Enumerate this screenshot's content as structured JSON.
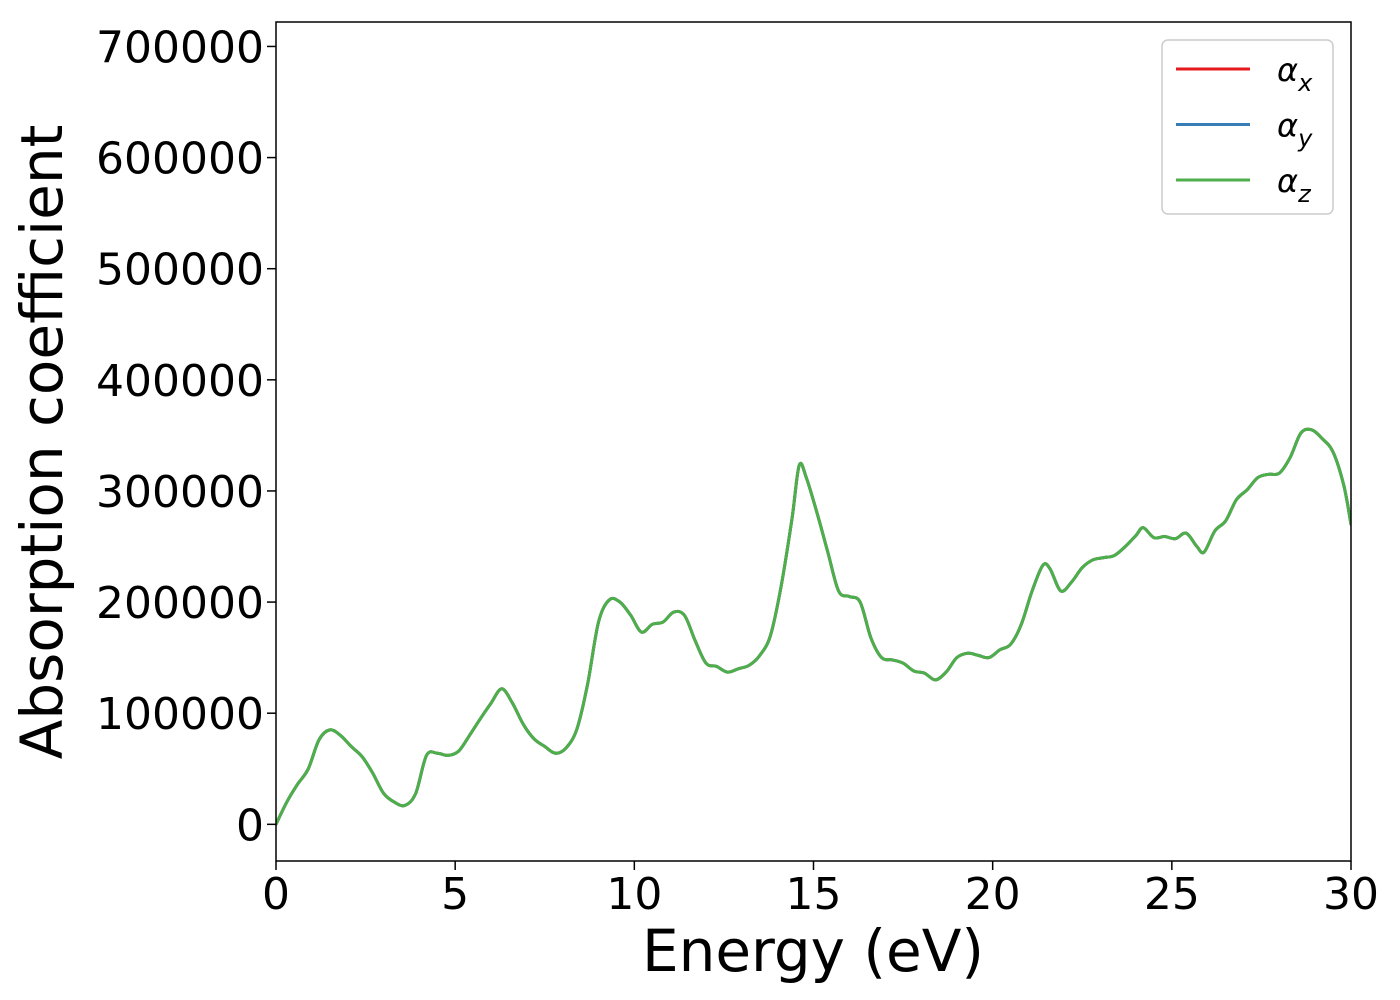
{
  "chart_data": {
    "type": "line",
    "xlabel": "Energy (eV)",
    "ylabel": "Absorption coefficient",
    "xlim": [
      0,
      30
    ],
    "ylim": [
      -33000,
      722000
    ],
    "xticks": [
      0,
      5,
      10,
      15,
      20,
      25,
      30
    ],
    "yticks": [
      0,
      100000,
      200000,
      300000,
      400000,
      500000,
      600000,
      700000
    ],
    "grid": false,
    "legend": "top-right",
    "legend_entries": [
      {
        "base": "α",
        "sub": "x",
        "color": "#e41a1c"
      },
      {
        "base": "α",
        "sub": "y",
        "color": "#377eb8"
      },
      {
        "base": "α",
        "sub": "z",
        "color": "#4daf4a"
      }
    ],
    "x": [
      0,
      0.3,
      0.6,
      0.9,
      1.2,
      1.5,
      1.8,
      2.1,
      2.4,
      2.7,
      3.0,
      3.3,
      3.6,
      3.9,
      4.2,
      4.5,
      4.8,
      5.1,
      5.4,
      5.7,
      6.0,
      6.3,
      6.6,
      6.9,
      7.2,
      7.5,
      7.8,
      8.1,
      8.4,
      8.7,
      9.0,
      9.3,
      9.6,
      9.9,
      10.2,
      10.5,
      10.8,
      11.1,
      11.4,
      11.7,
      12.0,
      12.3,
      12.6,
      12.9,
      13.2,
      13.5,
      13.8,
      14.1,
      14.4,
      14.6,
      14.8,
      15.1,
      15.4,
      15.7,
      16.0,
      16.3,
      16.6,
      16.9,
      17.2,
      17.5,
      17.8,
      18.1,
      18.4,
      18.7,
      19.0,
      19.3,
      19.6,
      19.9,
      20.2,
      20.5,
      20.8,
      21.1,
      21.4,
      21.6,
      21.9,
      22.2,
      22.5,
      22.8,
      23.1,
      23.4,
      23.7,
      24.0,
      24.2,
      24.5,
      24.8,
      25.1,
      25.4,
      25.7,
      25.9,
      26.2,
      26.5,
      26.8,
      27.1,
      27.4,
      27.7,
      28.0,
      28.3,
      28.6,
      28.9,
      29.2,
      29.5,
      29.8,
      30.0
    ],
    "series": [
      {
        "values": [
          0,
          20000,
          36000,
          50000,
          76000,
          85000,
          80000,
          70000,
          61000,
          46000,
          28000,
          20000,
          17000,
          28000,
          62000,
          64000,
          62000,
          66000,
          80000,
          95000,
          109000,
          122000,
          109000,
          90000,
          77000,
          70000,
          64000,
          69000,
          86000,
          127000,
          182000,
          202000,
          200000,
          188000,
          173000,
          180000,
          182000,
          191000,
          188000,
          165000,
          145000,
          142000,
          137000,
          140000,
          143000,
          152000,
          170000,
          215000,
          275000,
          323000,
          312000,
          280000,
          245000,
          210000,
          205000,
          200000,
          168000,
          150000,
          148000,
          145000,
          138000,
          136000,
          130000,
          137000,
          150000,
          154000,
          152000,
          150000,
          157000,
          162000,
          180000,
          210000,
          233000,
          230000,
          210000,
          218000,
          231000,
          238000,
          240000,
          242000,
          250000,
          260000,
          267000,
          258000,
          259000,
          257000,
          262000,
          250000,
          245000,
          264000,
          273000,
          292000,
          301000,
          312000,
          315000,
          316000,
          330000,
          352000,
          355000,
          347000,
          335000,
          305000,
          270000
        ]
      },
      {
        "values": [
          0,
          20000,
          36000,
          50000,
          76000,
          85000,
          80000,
          70000,
          61000,
          46000,
          28000,
          20000,
          17000,
          28000,
          62000,
          64000,
          62000,
          66000,
          80000,
          95000,
          109000,
          122000,
          109000,
          90000,
          77000,
          70000,
          64000,
          69000,
          86000,
          127000,
          182000,
          202000,
          200000,
          188000,
          173000,
          180000,
          182000,
          191000,
          188000,
          165000,
          145000,
          142000,
          137000,
          140000,
          143000,
          152000,
          170000,
          215000,
          275000,
          323000,
          312000,
          280000,
          245000,
          210000,
          205000,
          200000,
          168000,
          150000,
          148000,
          145000,
          138000,
          136000,
          130000,
          137000,
          150000,
          154000,
          152000,
          150000,
          157000,
          162000,
          180000,
          210000,
          233000,
          230000,
          210000,
          218000,
          231000,
          238000,
          240000,
          242000,
          250000,
          260000,
          267000,
          258000,
          259000,
          257000,
          262000,
          250000,
          245000,
          264000,
          273000,
          292000,
          301000,
          312000,
          315000,
          316000,
          330000,
          352000,
          355000,
          347000,
          335000,
          305000,
          270000
        ]
      },
      {
        "values": [
          0,
          20000,
          36000,
          50000,
          76000,
          85000,
          80000,
          70000,
          61000,
          46000,
          28000,
          20000,
          17000,
          28000,
          62000,
          64000,
          62000,
          66000,
          80000,
          95000,
          109000,
          122000,
          109000,
          90000,
          77000,
          70000,
          64000,
          69000,
          86000,
          127000,
          182000,
          202000,
          200000,
          188000,
          173000,
          180000,
          182000,
          191000,
          188000,
          165000,
          145000,
          142000,
          137000,
          140000,
          143000,
          152000,
          170000,
          215000,
          275000,
          323000,
          312000,
          280000,
          245000,
          210000,
          205000,
          200000,
          168000,
          150000,
          148000,
          145000,
          138000,
          136000,
          130000,
          137000,
          150000,
          154000,
          152000,
          150000,
          157000,
          162000,
          180000,
          210000,
          233000,
          230000,
          210000,
          218000,
          231000,
          238000,
          240000,
          242000,
          250000,
          260000,
          267000,
          258000,
          259000,
          257000,
          262000,
          250000,
          245000,
          264000,
          273000,
          292000,
          301000,
          312000,
          315000,
          316000,
          330000,
          352000,
          355000,
          347000,
          335000,
          305000,
          270000
        ]
      }
    ]
  }
}
